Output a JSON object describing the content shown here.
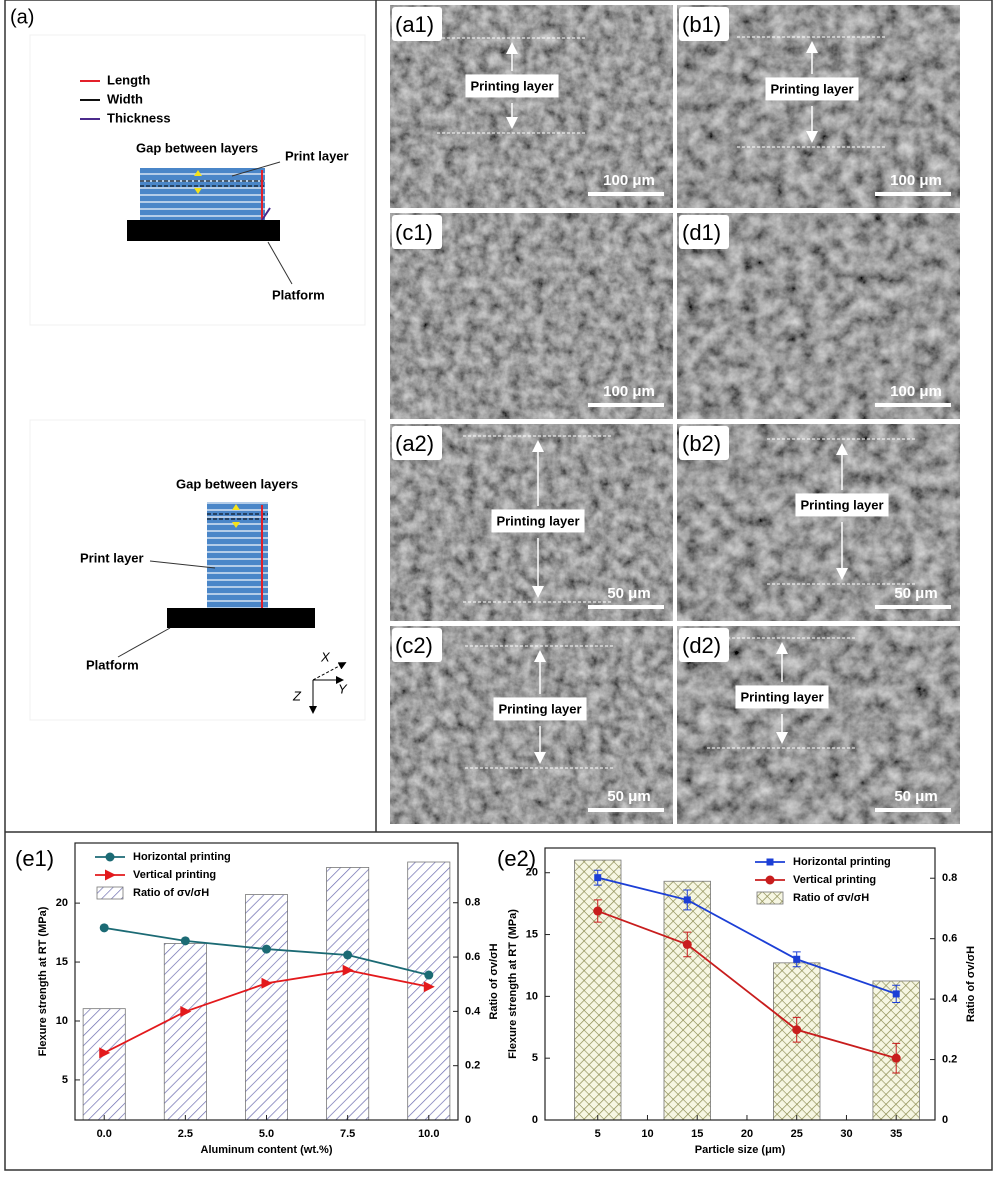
{
  "figure_a": {
    "label": "(a)",
    "legend": [
      {
        "name": "Length",
        "color": "#e3202a"
      },
      {
        "name": "Width",
        "color": "#111111"
      },
      {
        "name": "Thickness",
        "color": "#4b2a8c"
      }
    ],
    "top_diagram": {
      "gap": "Gap between layers",
      "print_layer": "Print layer",
      "platform": "Platform"
    },
    "bottom_diagram": {
      "gap": "Gap between layers",
      "print_layer": "Print layer",
      "platform": "Platform"
    },
    "axes": {
      "x": "X",
      "y": "Y",
      "z": "Z"
    }
  },
  "sem_panels": [
    {
      "label": "(a1)",
      "scale_bar": "100 μm",
      "annotation": "Printing layer"
    },
    {
      "label": "(b1)",
      "scale_bar": "100 μm",
      "annotation": "Printing layer"
    },
    {
      "label": "(c1)",
      "scale_bar": "100 μm"
    },
    {
      "label": "(d1)",
      "scale_bar": "100 μm"
    },
    {
      "label": "(a2)",
      "scale_bar": "50 μm",
      "annotation": "Printing layer"
    },
    {
      "label": "(b2)",
      "scale_bar": "50 μm",
      "annotation": "Printing layer"
    },
    {
      "label": "(c2)",
      "scale_bar": "50 μm",
      "annotation": "Printing layer"
    },
    {
      "label": "(d2)",
      "scale_bar": "50 μm",
      "annotation": "Printing layer"
    }
  ],
  "chart_data": [
    {
      "type": "line",
      "label": "(e1)",
      "xlabel": "Aluminum content (wt.%)",
      "ylabel": "Flexure strength at RT (MPa)",
      "y2label": "Ratio of σv/σH",
      "x": [
        0,
        2.5,
        5,
        7.5,
        10
      ],
      "xlim": [
        -0.9,
        10.9
      ],
      "xticks": [
        {
          "value": 0,
          "label": "0.0"
        },
        2.5,
        {
          "value": 5,
          "label": "5.0"
        },
        7.5,
        {
          "value": 10,
          "label": "10.0"
        }
      ],
      "ylim": [
        1.6,
        25.1
      ],
      "yticks": [
        5,
        10,
        15,
        20
      ],
      "y2lim": [
        0,
        1.02
      ],
      "y2ticks": [
        0,
        0.2,
        0.4,
        0.6,
        0.8
      ],
      "legend": "upper left",
      "grid": false,
      "series": [
        {
          "name": "Horizontal printing",
          "type": "line",
          "color": "#1b6a74",
          "marker": "circle",
          "values": [
            17.9,
            16.8,
            16.1,
            15.6,
            13.9
          ]
        },
        {
          "name": "Vertical printing",
          "type": "line",
          "color": "#e3191c",
          "marker": "triangle",
          "values": [
            7.3,
            10.8,
            13.2,
            14.3,
            12.9
          ]
        },
        {
          "name": "Ratio of σv/σH",
          "type": "bar",
          "axis": "y2",
          "color": "#6d6db0",
          "hatch": "diagonal",
          "values": [
            0.41,
            0.65,
            0.83,
            0.93,
            0.95
          ]
        }
      ]
    },
    {
      "type": "line",
      "label": "(e2)",
      "xlabel": "Particle size (μm)",
      "ylabel": "Flexure strength at RT (MPa)",
      "y2label": "Ratio of σv/σH",
      "x": [
        5,
        14,
        25,
        35
      ],
      "xlim": [
        -0.3,
        38.9
      ],
      "xticks": [
        5,
        10,
        15,
        20,
        25,
        30,
        35
      ],
      "ylim": [
        0,
        22
      ],
      "yticks": [
        0,
        5,
        10,
        15,
        20
      ],
      "y2lim": [
        0,
        0.9
      ],
      "y2ticks": [
        0,
        0.2,
        0.4,
        0.6,
        0.8
      ],
      "legend": "upper right",
      "grid": false,
      "series": [
        {
          "name": "Horizontal printing",
          "type": "line",
          "color": "#1c3fd6",
          "marker": "square",
          "values": [
            19.6,
            17.8,
            13.0,
            10.2
          ],
          "errors": [
            0.6,
            0.8,
            0.6,
            0.7
          ]
        },
        {
          "name": "Vertical printing",
          "type": "line",
          "color": "#c81d1d",
          "marker": "circle",
          "values": [
            16.9,
            14.2,
            7.3,
            5.0
          ],
          "errors": [
            0.9,
            1.0,
            1.0,
            1.2
          ]
        },
        {
          "name": "Ratio of σv/σH",
          "type": "bar",
          "axis": "y2",
          "color": "#8a8a50",
          "hatch": "cross",
          "values": [
            0.86,
            0.79,
            0.52,
            0.46
          ]
        }
      ]
    }
  ]
}
